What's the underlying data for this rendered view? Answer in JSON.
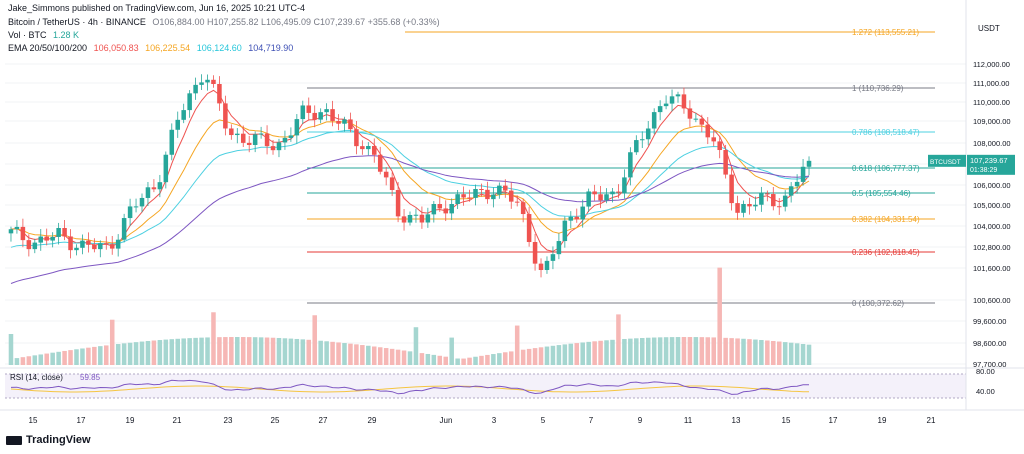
{
  "header": {
    "published": "Jake_Simmons published on TradingView.com, Jun 16, 2025 10:21 UTC-4",
    "symbol": "Bitcoin / TetherUS · 4h · BINANCE",
    "ohlc": "O106,884.00 H107,255.82 L106,495.09 C107,239.67 +355.68 (+0.33%)",
    "vol_label": "Vol · BTC",
    "vol_value": "1.28 K",
    "ema_label": "EMA 20/50/100/200",
    "ema_values": [
      "106,050.83",
      "106,225.54",
      "106,124.60",
      "104,719.90"
    ]
  },
  "colors": {
    "up": "#26a69a",
    "down": "#ef5350",
    "ema20": "#ef5350",
    "ema50": "#f5a623",
    "ema100": "#4dd0e1",
    "ema200": "#7e57c2",
    "fib_1272": "#f5a623",
    "fib_1": "#787b86",
    "fib_0786": "#4dd0e1",
    "fib_0618": "#26a69a",
    "fib_05": "#26a69a",
    "fib_0382": "#f5a623",
    "fib_0236": "#e53935",
    "fib_0": "#787b86"
  },
  "price_axis": {
    "currency": "USDT",
    "ticks": [
      "112,000.00",
      "111,000.00",
      "110,000.00",
      "109,000.00",
      "108,000.00",
      "107,000.00",
      "106,000.00",
      "105,000.00",
      "104,000.00",
      "102,800.00",
      "101,600.00",
      "100,600.00",
      "99,600.00",
      "98,600.00",
      "97,700.00"
    ],
    "last_label": "BTCUSDT",
    "last_price": "107,239.67",
    "countdown": "01:38:29"
  },
  "rsi": {
    "label": "RSI (14, close)",
    "value": "59.85",
    "ticks": [
      "80.00",
      "40.00"
    ]
  },
  "x_axis": {
    "ticks": [
      "15",
      "17",
      "19",
      "21",
      "23",
      "25",
      "27",
      "29",
      "Jun",
      "3",
      "5",
      "7",
      "9",
      "11",
      "13",
      "15",
      "17",
      "19",
      "21"
    ]
  },
  "footer": {
    "brand": "TradingView"
  },
  "chart_data": {
    "type": "candlestick",
    "title": "Bitcoin / TetherUS · 4h · BINANCE",
    "fib_levels": [
      {
        "level": "1.272",
        "price": 113555.21,
        "label": "1.272 (113,555.21)"
      },
      {
        "level": "1",
        "price": 110736.29,
        "label": "1 (110,736.29)"
      },
      {
        "level": "0.786",
        "price": 108518.47,
        "label": "0.786 (108,518.47)"
      },
      {
        "level": "0.618",
        "price": 106777.37,
        "label": "0.618 (106,777.37)"
      },
      {
        "level": "0.5",
        "price": 105554.46,
        "label": "0.5 (105,554.46)"
      },
      {
        "level": "0.382",
        "price": 104331.54,
        "label": "0.382 (104,331.54)"
      },
      {
        "level": "0.236",
        "price": 102818.45,
        "label": "0.236 (102,818.45)"
      },
      {
        "level": "0",
        "price": 100372.62,
        "label": "0 (100,372.62)"
      }
    ],
    "price_range": [
      97700,
      114000
    ],
    "close_path": [
      {
        "date": "May 14",
        "close": 103900
      },
      {
        "date": "May 15",
        "close": 103500
      },
      {
        "date": "May 16",
        "close": 103800
      },
      {
        "date": "May 17",
        "close": 103300
      },
      {
        "date": "May 18",
        "close": 103200
      },
      {
        "date": "May 19",
        "close": 105000
      },
      {
        "date": "May 20",
        "close": 106200
      },
      {
        "date": "May 21",
        "close": 109400
      },
      {
        "date": "May 22",
        "close": 111500
      },
      {
        "date": "May 23",
        "close": 108500
      },
      {
        "date": "May 24",
        "close": 108200
      },
      {
        "date": "May 25",
        "close": 107900
      },
      {
        "date": "May 26",
        "close": 109300
      },
      {
        "date": "May 27",
        "close": 109600
      },
      {
        "date": "May 28",
        "close": 108500
      },
      {
        "date": "May 29",
        "close": 107600
      },
      {
        "date": "May 30",
        "close": 104900
      },
      {
        "date": "May 31",
        "close": 104500
      },
      {
        "date": "Jun 1",
        "close": 105300
      },
      {
        "date": "Jun 2",
        "close": 105600
      },
      {
        "date": "Jun 3",
        "close": 106000
      },
      {
        "date": "Jun 4",
        "close": 105200
      },
      {
        "date": "Jun 5",
        "close": 101800
      },
      {
        "date": "Jun 6",
        "close": 104600
      },
      {
        "date": "Jun 7",
        "close": 105500
      },
      {
        "date": "Jun 8",
        "close": 105800
      },
      {
        "date": "Jun 9",
        "close": 108200
      },
      {
        "date": "Jun 10",
        "close": 110200
      },
      {
        "date": "Jun 11",
        "close": 109600
      },
      {
        "date": "Jun 12",
        "close": 108300
      },
      {
        "date": "Jun 13",
        "close": 105000
      },
      {
        "date": "Jun 14",
        "close": 105400
      },
      {
        "date": "Jun 15",
        "close": 105500
      },
      {
        "date": "Jun 16",
        "close": 107239.67
      }
    ],
    "ema_latest": {
      "EMA20": 106050.83,
      "EMA50": 106225.54,
      "EMA100": 106124.6,
      "EMA200": 104719.9
    },
    "rsi_latest": 59.85
  }
}
